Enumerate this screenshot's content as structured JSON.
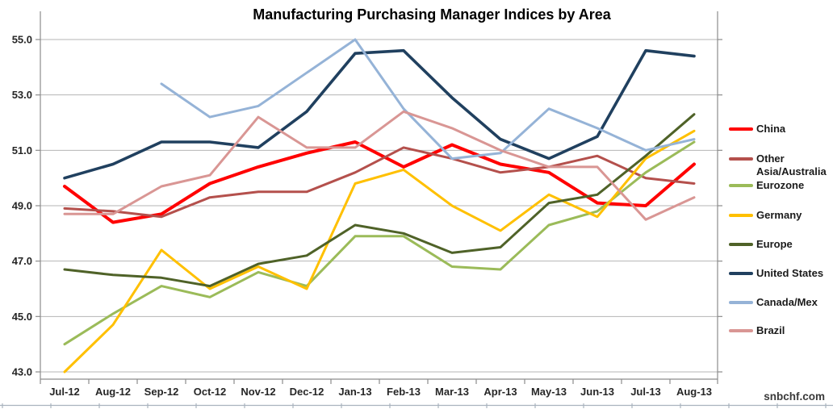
{
  "title": "Manufacturing Purchasing Manager Indices by Area",
  "watermark": "snbchf.com",
  "colors": {
    "gridline": "#b5b5b5",
    "axis": "#8c8c8c",
    "page_rule": "#a9b3be",
    "tick_text": "#262626",
    "title_text": "#000000"
  },
  "chart_data": {
    "type": "line",
    "title": "Manufacturing Purchasing Manager Indices by Area",
    "xlabel": "",
    "ylabel": "",
    "grid": true,
    "legend_position": "right",
    "ylim": [
      43.0,
      55.0
    ],
    "y_ticks": [
      "43.0",
      "45.0",
      "47.0",
      "49.0",
      "51.0",
      "53.0",
      "55.0"
    ],
    "x_labels": [
      "Jul-12",
      "Aug-12",
      "Sep-12",
      "Oct-12",
      "Nov-12",
      "Dec-12",
      "Jan-13",
      "Feb-13",
      "Mar-13",
      "Apr-13",
      "May-13",
      "Jun-13",
      "Jul-13",
      "Aug-13"
    ],
    "series": [
      {
        "name": "China",
        "color": "#ff0000",
        "values": [
          49.7,
          48.4,
          48.7,
          49.8,
          50.4,
          50.9,
          51.3,
          50.4,
          51.2,
          50.5,
          50.2,
          49.1,
          49.0,
          50.5
        ]
      },
      {
        "name": "Other Asia/Australia",
        "color": "#b4504c",
        "values": [
          48.9,
          48.8,
          48.6,
          49.3,
          49.5,
          49.5,
          50.2,
          51.1,
          50.7,
          50.2,
          50.4,
          50.8,
          50.0,
          49.8
        ]
      },
      {
        "name": "Eurozone",
        "color": "#9bbb59",
        "values": [
          44.0,
          45.1,
          46.1,
          45.7,
          46.6,
          46.1,
          47.9,
          47.9,
          46.8,
          46.7,
          48.3,
          48.8,
          50.2,
          51.3
        ]
      },
      {
        "name": "Germany",
        "color": "#ffc000",
        "values": [
          43.0,
          44.7,
          47.4,
          46.0,
          46.8,
          46.0,
          49.8,
          50.3,
          49.0,
          48.1,
          49.4,
          48.6,
          50.7,
          51.7
        ]
      },
      {
        "name": "Europe",
        "color": "#4f6228",
        "values": [
          46.7,
          46.5,
          46.4,
          46.1,
          46.9,
          47.2,
          48.3,
          48.0,
          47.3,
          47.5,
          49.1,
          49.4,
          50.8,
          52.3
        ]
      },
      {
        "name": "United States",
        "color": "#20405f",
        "values": [
          50.0,
          50.5,
          51.3,
          51.3,
          51.1,
          52.4,
          54.5,
          54.6,
          52.9,
          51.4,
          50.7,
          51.5,
          54.6,
          54.4
        ]
      },
      {
        "name": "Canada/Mex",
        "color": "#95b3d7",
        "values": [
          null,
          null,
          53.4,
          52.2,
          52.6,
          53.8,
          55.0,
          52.5,
          50.7,
          50.9,
          52.5,
          51.8,
          51.0,
          51.4
        ]
      },
      {
        "name": "Brazil",
        "color": "#d99694",
        "values": [
          48.7,
          48.7,
          49.7,
          50.1,
          52.2,
          51.1,
          51.1,
          52.4,
          51.8,
          51.0,
          50.4,
          50.4,
          48.5,
          49.3
        ]
      }
    ]
  }
}
